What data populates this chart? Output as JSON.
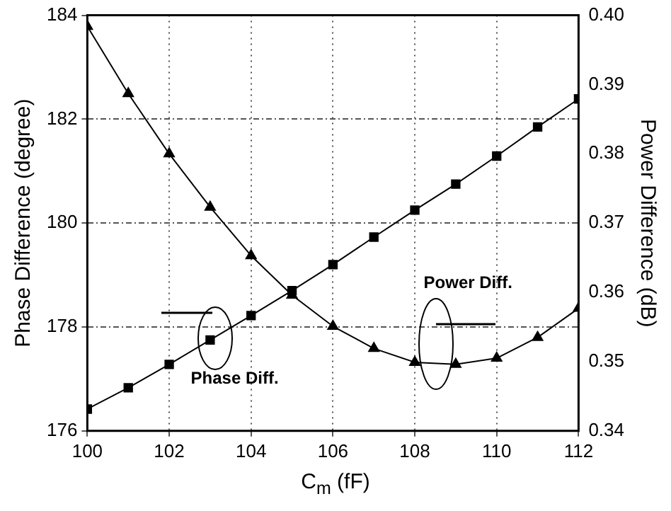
{
  "chart_data": {
    "type": "line",
    "xlabel": "C$_{m}$ (fF)",
    "ylabel": "Phase Difference (degree)",
    "y2label": "Power Difference (dB)",
    "x": [
      100,
      101,
      102,
      103,
      104,
      105,
      106,
      107,
      108,
      109,
      110,
      111,
      112
    ],
    "series": [
      {
        "color": "#000000",
        "marker": "square",
        "values": [
          176.42,
          176.83,
          177.28,
          177.75,
          178.22,
          178.7,
          179.2,
          179.73,
          180.25,
          180.75,
          181.29,
          181.85,
          182.39
        ]
      },
      {
        "color": "#000000",
        "marker": "triangle",
        "axis": "y2",
        "values": [
          0.3984,
          0.3887,
          0.38,
          0.3723,
          0.3653,
          0.3596,
          0.3551,
          0.3519,
          0.3499,
          0.3496,
          0.3505,
          0.3535,
          0.3577
        ]
      }
    ],
    "xlim": [
      100,
      112
    ],
    "xticks": [
      100,
      102,
      104,
      106,
      108,
      110,
      112
    ],
    "ylim": [
      176,
      184
    ],
    "yticks": [
      176,
      178,
      180,
      182,
      184
    ],
    "y2lim": [
      0.34,
      0.4
    ],
    "y2ticks": [
      {
        "value": 0.34,
        "label": "0.34"
      },
      {
        "value": 0.35,
        "label": "0.35"
      },
      {
        "value": 0.36,
        "label": "0.36"
      },
      {
        "value": 0.37,
        "label": "0.37"
      },
      {
        "value": 0.38,
        "label": "0.38"
      },
      {
        "value": 0.39,
        "label": "0.39"
      },
      {
        "value": 0.4,
        "label": "0.40"
      }
    ],
    "annotations": [
      "Phase Diff.",
      "Power Diff."
    ],
    "grid": true,
    "legend": false,
    "line_style": "solid"
  }
}
